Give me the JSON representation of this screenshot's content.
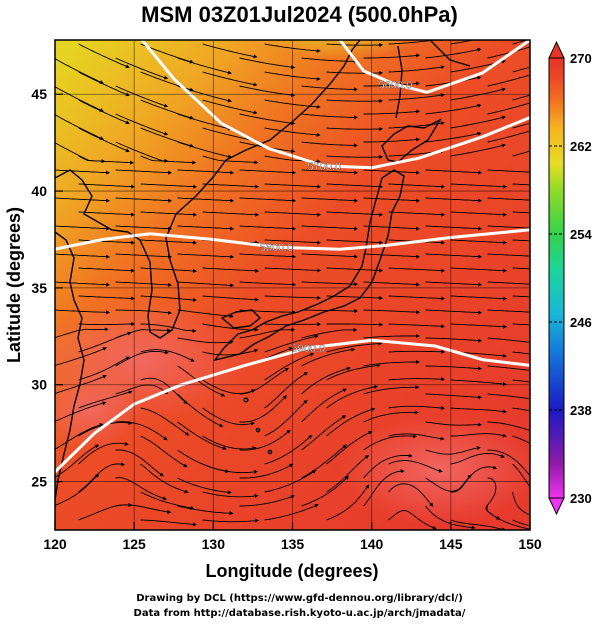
{
  "title": "MSM 03Z01Jul2024 (500.0hPa)",
  "axes": {
    "xlabel": "Longitude (degrees)",
    "ylabel": "Latitude  (degrees)",
    "x_ticks": [
      "120",
      "125",
      "130",
      "135",
      "140",
      "145",
      "150"
    ],
    "y_ticks": [
      "25",
      "30",
      "35",
      "40",
      "45"
    ]
  },
  "colorbar": {
    "ticks": [
      "270",
      "262",
      "254",
      "246",
      "238",
      "230"
    ]
  },
  "contour_labels": [
    "5600.0",
    "5700.0",
    "5800.0",
    "5900.0"
  ],
  "footer": {
    "line1": "Drawing by DCL (https://www.gfd-dennou.org/library/dcl/)",
    "line2": "Data from http://database.rish.kyoto-u.ac.jp/arch/jmadata/"
  },
  "chart_data": {
    "type": "heatmap",
    "variable": "temperature (K) with 500hPa geopotential height contours and wind streamlines",
    "x_range": [
      120,
      150
    ],
    "y_range": [
      22.5,
      47.8
    ],
    "color_range": [
      230,
      270
    ],
    "contours": [
      {
        "label": "5600.0",
        "points": [
          [
            138.0,
            47.8
          ],
          [
            139.5,
            46.2
          ],
          [
            141.5,
            45.5
          ],
          [
            143.5,
            45.1
          ],
          [
            147,
            46.1
          ],
          [
            150,
            47.8
          ]
        ]
      },
      {
        "label": "5700.0",
        "points": [
          [
            125.5,
            47.8
          ],
          [
            127.5,
            45.8
          ],
          [
            130.5,
            43.5
          ],
          [
            133.5,
            42.2
          ],
          [
            137,
            41.3
          ],
          [
            140,
            41.2
          ],
          [
            143,
            41.7
          ],
          [
            147,
            42.8
          ],
          [
            150,
            43.8
          ]
        ]
      },
      {
        "label": "5800.0",
        "points": [
          [
            120,
            37.0
          ],
          [
            123,
            37.5
          ],
          [
            126,
            37.8
          ],
          [
            130,
            37.5
          ],
          [
            134,
            37.1
          ],
          [
            138,
            37.0
          ],
          [
            141,
            37.2
          ],
          [
            145,
            37.6
          ],
          [
            150,
            38.0
          ]
        ]
      },
      {
        "label": "5900.0",
        "points": [
          [
            120,
            25.5
          ],
          [
            122.5,
            27.5
          ],
          [
            125,
            29.0
          ],
          [
            128,
            30.0
          ],
          [
            132,
            31.0
          ],
          [
            136,
            31.9
          ],
          [
            140,
            32.3
          ],
          [
            144,
            32.0
          ],
          [
            147,
            31.3
          ],
          [
            150,
            31.0
          ]
        ]
      }
    ],
    "temperature_colors": [
      "#ee34ee",
      "#8e1aa8",
      "#1a1ac4",
      "#1470d8",
      "#18b8d8",
      "#1ed49a",
      "#34d24a",
      "#90dc28",
      "#e6dc26",
      "#f6b422",
      "#f27420",
      "#ec4426",
      "#e63528"
    ]
  }
}
